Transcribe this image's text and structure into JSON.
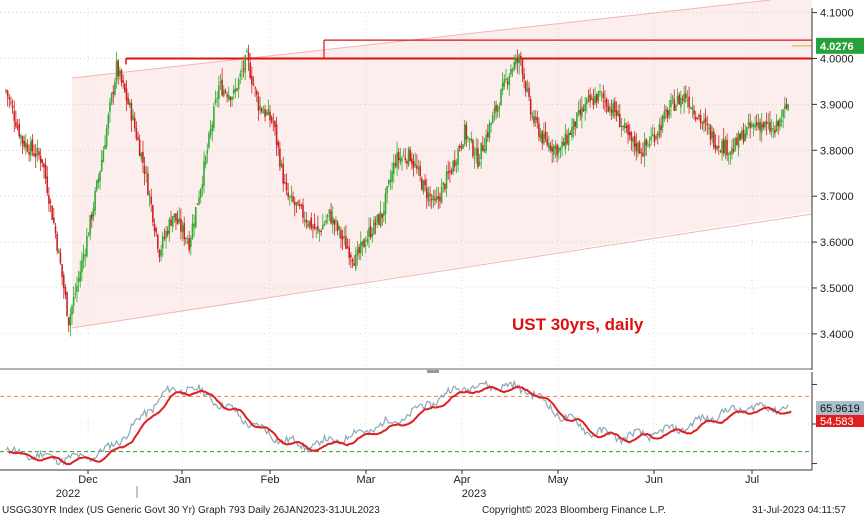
{
  "chart_data": {
    "type": "candlestick",
    "title": "",
    "annotation": "UST 30yrs, daily",
    "price_axis": {
      "ticks": [
        "4.1000",
        "4.0000",
        "3.9000",
        "3.8000",
        "3.7000",
        "3.6000",
        "3.5000",
        "3.4000"
      ],
      "range": [
        3.33,
        4.11
      ],
      "last_value": "4.0276"
    },
    "oscillator": {
      "value_label": "65.9619",
      "signal_label": "54.583",
      "upper_level": 80,
      "lower_level": 20,
      "range": [
        0,
        100
      ]
    },
    "months": [
      "Dec",
      "Jan",
      "Feb",
      "Mar",
      "Apr",
      "May",
      "Jun",
      "Jul"
    ],
    "years": [
      "2022",
      "2023"
    ],
    "horizontal_levels": [
      4.0,
      4.04
    ],
    "colors": {
      "up": "#33aa33",
      "down": "#cc2222",
      "signal": "#e02020",
      "osc": "#8aa8b8",
      "channel": "#f8d7d7"
    },
    "anchors": [
      {
        "x": 0,
        "y": 3.93
      },
      {
        "x": 10,
        "y": 3.82
      },
      {
        "x": 22,
        "y": 3.78
      },
      {
        "x": 30,
        "y": 3.62
      },
      {
        "x": 38,
        "y": 3.43
      },
      {
        "x": 44,
        "y": 3.52
      },
      {
        "x": 52,
        "y": 3.66
      },
      {
        "x": 58,
        "y": 3.78
      },
      {
        "x": 67,
        "y": 3.98
      },
      {
        "x": 76,
        "y": 3.88
      },
      {
        "x": 84,
        "y": 3.76
      },
      {
        "x": 93,
        "y": 3.58
      },
      {
        "x": 101,
        "y": 3.66
      },
      {
        "x": 111,
        "y": 3.6
      },
      {
        "x": 120,
        "y": 3.76
      },
      {
        "x": 129,
        "y": 3.94
      },
      {
        "x": 138,
        "y": 3.92
      },
      {
        "x": 146,
        "y": 4.0
      },
      {
        "x": 153,
        "y": 3.9
      },
      {
        "x": 162,
        "y": 3.86
      },
      {
        "x": 170,
        "y": 3.7
      },
      {
        "x": 180,
        "y": 3.66
      },
      {
        "x": 189,
        "y": 3.62
      },
      {
        "x": 196,
        "y": 3.66
      },
      {
        "x": 205,
        "y": 3.6
      },
      {
        "x": 212,
        "y": 3.56
      },
      {
        "x": 220,
        "y": 3.62
      },
      {
        "x": 228,
        "y": 3.66
      },
      {
        "x": 236,
        "y": 3.78
      },
      {
        "x": 245,
        "y": 3.79
      },
      {
        "x": 253,
        "y": 3.72
      },
      {
        "x": 260,
        "y": 3.68
      },
      {
        "x": 270,
        "y": 3.76
      },
      {
        "x": 278,
        "y": 3.84
      },
      {
        "x": 286,
        "y": 3.78
      },
      {
        "x": 296,
        "y": 3.88
      },
      {
        "x": 306,
        "y": 3.98
      },
      {
        "x": 312,
        "y": 4.0
      },
      {
        "x": 318,
        "y": 3.88
      },
      {
        "x": 326,
        "y": 3.82
      },
      {
        "x": 336,
        "y": 3.8
      },
      {
        "x": 345,
        "y": 3.86
      },
      {
        "x": 352,
        "y": 3.9
      },
      {
        "x": 360,
        "y": 3.92
      },
      {
        "x": 370,
        "y": 3.88
      },
      {
        "x": 378,
        "y": 3.82
      },
      {
        "x": 386,
        "y": 3.8
      },
      {
        "x": 394,
        "y": 3.84
      },
      {
        "x": 404,
        "y": 3.9
      },
      {
        "x": 412,
        "y": 3.92
      },
      {
        "x": 422,
        "y": 3.86
      },
      {
        "x": 430,
        "y": 3.82
      },
      {
        "x": 440,
        "y": 3.8
      },
      {
        "x": 448,
        "y": 3.84
      },
      {
        "x": 456,
        "y": 3.86
      },
      {
        "x": 466,
        "y": 3.84
      },
      {
        "x": 474,
        "y": 3.9
      }
    ],
    "oscillator_anchors": [
      {
        "x": 0,
        "y": 20
      },
      {
        "x": 25,
        "y": 14
      },
      {
        "x": 45,
        "y": 12
      },
      {
        "x": 62,
        "y": 22
      },
      {
        "x": 80,
        "y": 52
      },
      {
        "x": 95,
        "y": 82
      },
      {
        "x": 110,
        "y": 90
      },
      {
        "x": 125,
        "y": 78
      },
      {
        "x": 142,
        "y": 58
      },
      {
        "x": 160,
        "y": 38
      },
      {
        "x": 180,
        "y": 26
      },
      {
        "x": 200,
        "y": 32
      },
      {
        "x": 220,
        "y": 44
      },
      {
        "x": 240,
        "y": 56
      },
      {
        "x": 258,
        "y": 74
      },
      {
        "x": 276,
        "y": 90
      },
      {
        "x": 296,
        "y": 92
      },
      {
        "x": 316,
        "y": 88
      },
      {
        "x": 334,
        "y": 62
      },
      {
        "x": 354,
        "y": 42
      },
      {
        "x": 374,
        "y": 36
      },
      {
        "x": 394,
        "y": 40
      },
      {
        "x": 414,
        "y": 48
      },
      {
        "x": 430,
        "y": 60
      },
      {
        "x": 450,
        "y": 68
      },
      {
        "x": 470,
        "y": 68
      }
    ]
  },
  "footer": {
    "left": "USGG30YR Index (US Generic Govt 30 Yr) Graph 793  Daily 26JAN2023-31JUL2023",
    "center": "Copyright© 2023 Bloomberg Finance L.P.",
    "right": "31-Jul-2023 04:11:57"
  }
}
